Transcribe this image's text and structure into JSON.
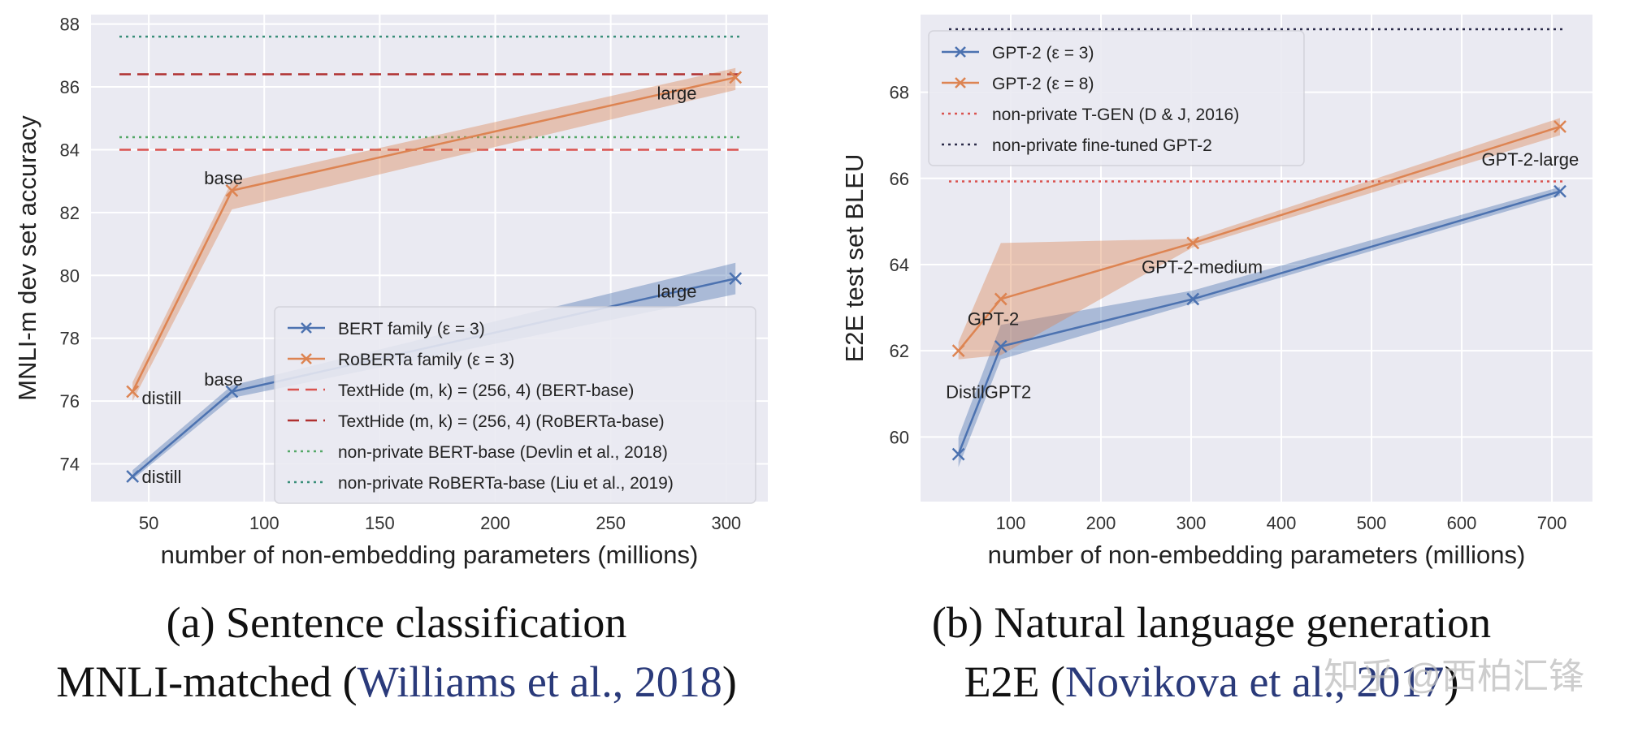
{
  "chart_data": [
    {
      "type": "line",
      "xlabel": "number of non-embedding parameters (millions)",
      "ylabel": "MNLI-m dev set accuracy",
      "xlim": [
        25,
        318
      ],
      "ylim": [
        72.8,
        88.3
      ],
      "xticks": [
        50,
        100,
        150,
        200,
        250,
        300
      ],
      "yticks": [
        74,
        76,
        78,
        80,
        82,
        84,
        86,
        88
      ],
      "grid": true,
      "legend_position": "lower-right",
      "series": [
        {
          "name": "BERT family (ε = 3)",
          "color": "#4c72b0",
          "x": [
            43,
            86,
            304
          ],
          "y": [
            73.6,
            76.3,
            79.9
          ],
          "band_low": [
            73.5,
            76.1,
            79.4
          ],
          "band_high": [
            73.8,
            76.5,
            80.4
          ]
        },
        {
          "name": "RoBERTa family (ε = 3)",
          "color": "#dd8452",
          "x": [
            43,
            86,
            304
          ],
          "y": [
            76.3,
            82.7,
            86.3
          ],
          "band_low": [
            76.0,
            82.1,
            85.9
          ],
          "band_high": [
            76.6,
            83.0,
            86.6
          ]
        }
      ],
      "hlines": [
        {
          "name": "TextHide (m, k) = (256, 4) (BERT-base)",
          "y": 84.0,
          "color": "#d9534f",
          "dash": "dashed"
        },
        {
          "name": "TextHide (m, k) = (256, 4) (RoBERTa-base)",
          "y": 86.4,
          "color": "#b03030",
          "dash": "dashed"
        },
        {
          "name": "non-private BERT-base (Devlin et al., 2018)",
          "y": 84.4,
          "color": "#55a868",
          "dash": "dotted"
        },
        {
          "name": "non-private RoBERTa-base (Liu et al., 2019)",
          "y": 87.6,
          "color": "#3a8f7a",
          "dash": "dotted"
        }
      ],
      "annotations": [
        {
          "text": "distill",
          "x": 47,
          "y": 75.9
        },
        {
          "text": "base",
          "x": 74,
          "y": 82.9
        },
        {
          "text": "large",
          "x": 270,
          "y": 85.6
        },
        {
          "text": "base",
          "x": 74,
          "y": 76.5
        },
        {
          "text": "large",
          "x": 270,
          "y": 79.3
        },
        {
          "text": "distill",
          "x": 47,
          "y": 73.4
        }
      ]
    },
    {
      "type": "line",
      "xlabel": "number of non-embedding parameters (millions)",
      "ylabel": "E2E test set BLEU",
      "xlim": [
        0,
        745
      ],
      "ylim": [
        58.5,
        69.8
      ],
      "xticks": [
        100,
        200,
        300,
        400,
        500,
        600,
        700
      ],
      "yticks": [
        60,
        62,
        64,
        66,
        68
      ],
      "grid": true,
      "legend_position": "upper-left",
      "series": [
        {
          "name": "GPT-2 (ε = 3)",
          "color": "#4c72b0",
          "x": [
            42,
            89,
            302,
            709
          ],
          "y": [
            59.6,
            62.1,
            63.2,
            65.7
          ],
          "band_low": [
            59.3,
            61.8,
            63.1,
            65.6
          ],
          "band_high": [
            60.0,
            62.6,
            63.4,
            65.8
          ]
        },
        {
          "name": "GPT-2 (ε = 8)",
          "color": "#dd8452",
          "x": [
            42,
            89,
            302,
            709
          ],
          "y": [
            62.0,
            63.2,
            64.5,
            67.2
          ],
          "band_low": [
            61.8,
            61.9,
            64.4,
            67.0
          ],
          "band_high": [
            62.2,
            64.5,
            64.6,
            67.4
          ]
        }
      ],
      "hlines": [
        {
          "name": "non-private T-GEN (D & J, 2016)",
          "y": 65.93,
          "color": "#d9534f",
          "dash": "dotted"
        },
        {
          "name": "non-private fine-tuned GPT-2",
          "y": 69.46,
          "color": "#2c2c4a",
          "dash": "dotted"
        }
      ],
      "annotations": [
        {
          "text": "GPT-2",
          "x": 52,
          "y": 62.6
        },
        {
          "text": "DistilGPT2",
          "x": 28,
          "y": 60.9
        },
        {
          "text": "GPT-2-medium",
          "x": 245,
          "y": 63.8
        },
        {
          "text": "GPT-2-large",
          "x": 622,
          "y": 66.3
        }
      ]
    }
  ],
  "captions": {
    "a_line1": "(a) Sentence classification",
    "a_line2_prefix": "MNLI-matched (",
    "a_line2_cite": "Williams et al., 2018",
    "a_line2_suffix": ")",
    "b_line1": "(b) Natural language generation",
    "b_line2_prefix": "E2E (",
    "b_line2_cite": "Novikova et al., 2017",
    "b_line2_suffix": ")"
  },
  "watermark": "知乎 @西柏汇锋",
  "colors": {
    "plot_bg": "#eaeaf2",
    "grid": "#ffffff",
    "blue": "#4c72b0",
    "orange": "#dd8452"
  }
}
